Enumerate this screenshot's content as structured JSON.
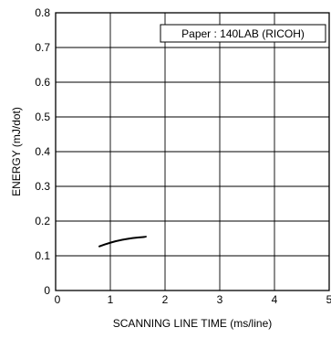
{
  "chart_data": {
    "type": "line",
    "title": "",
    "xlabel": "SCANNING  LINE  TIME (ms/line)",
    "ylabel": "ENERGY (mJ/dot)",
    "xlim": [
      0,
      5
    ],
    "ylim": [
      0,
      0.8
    ],
    "x_ticks": [
      "0",
      "1",
      "2",
      "3",
      "4",
      "5"
    ],
    "y_ticks": [
      "0",
      "0.1",
      "0.2",
      "0.3",
      "0.4",
      "0.5",
      "0.6",
      "0.7",
      "0.8"
    ],
    "x_tick_values": [
      0,
      1,
      2,
      3,
      4,
      5
    ],
    "y_tick_values": [
      0,
      0.1,
      0.2,
      0.3,
      0.4,
      0.5,
      0.6,
      0.7,
      0.8
    ],
    "grid": true,
    "legend_position": "top-right",
    "annotation": "Paper : 140LAB (RICOH)",
    "series": [
      {
        "x": [
          0.8,
          1.0,
          1.2,
          1.4,
          1.65
        ],
        "y": [
          0.127,
          0.138,
          0.146,
          0.151,
          0.155
        ]
      }
    ]
  }
}
